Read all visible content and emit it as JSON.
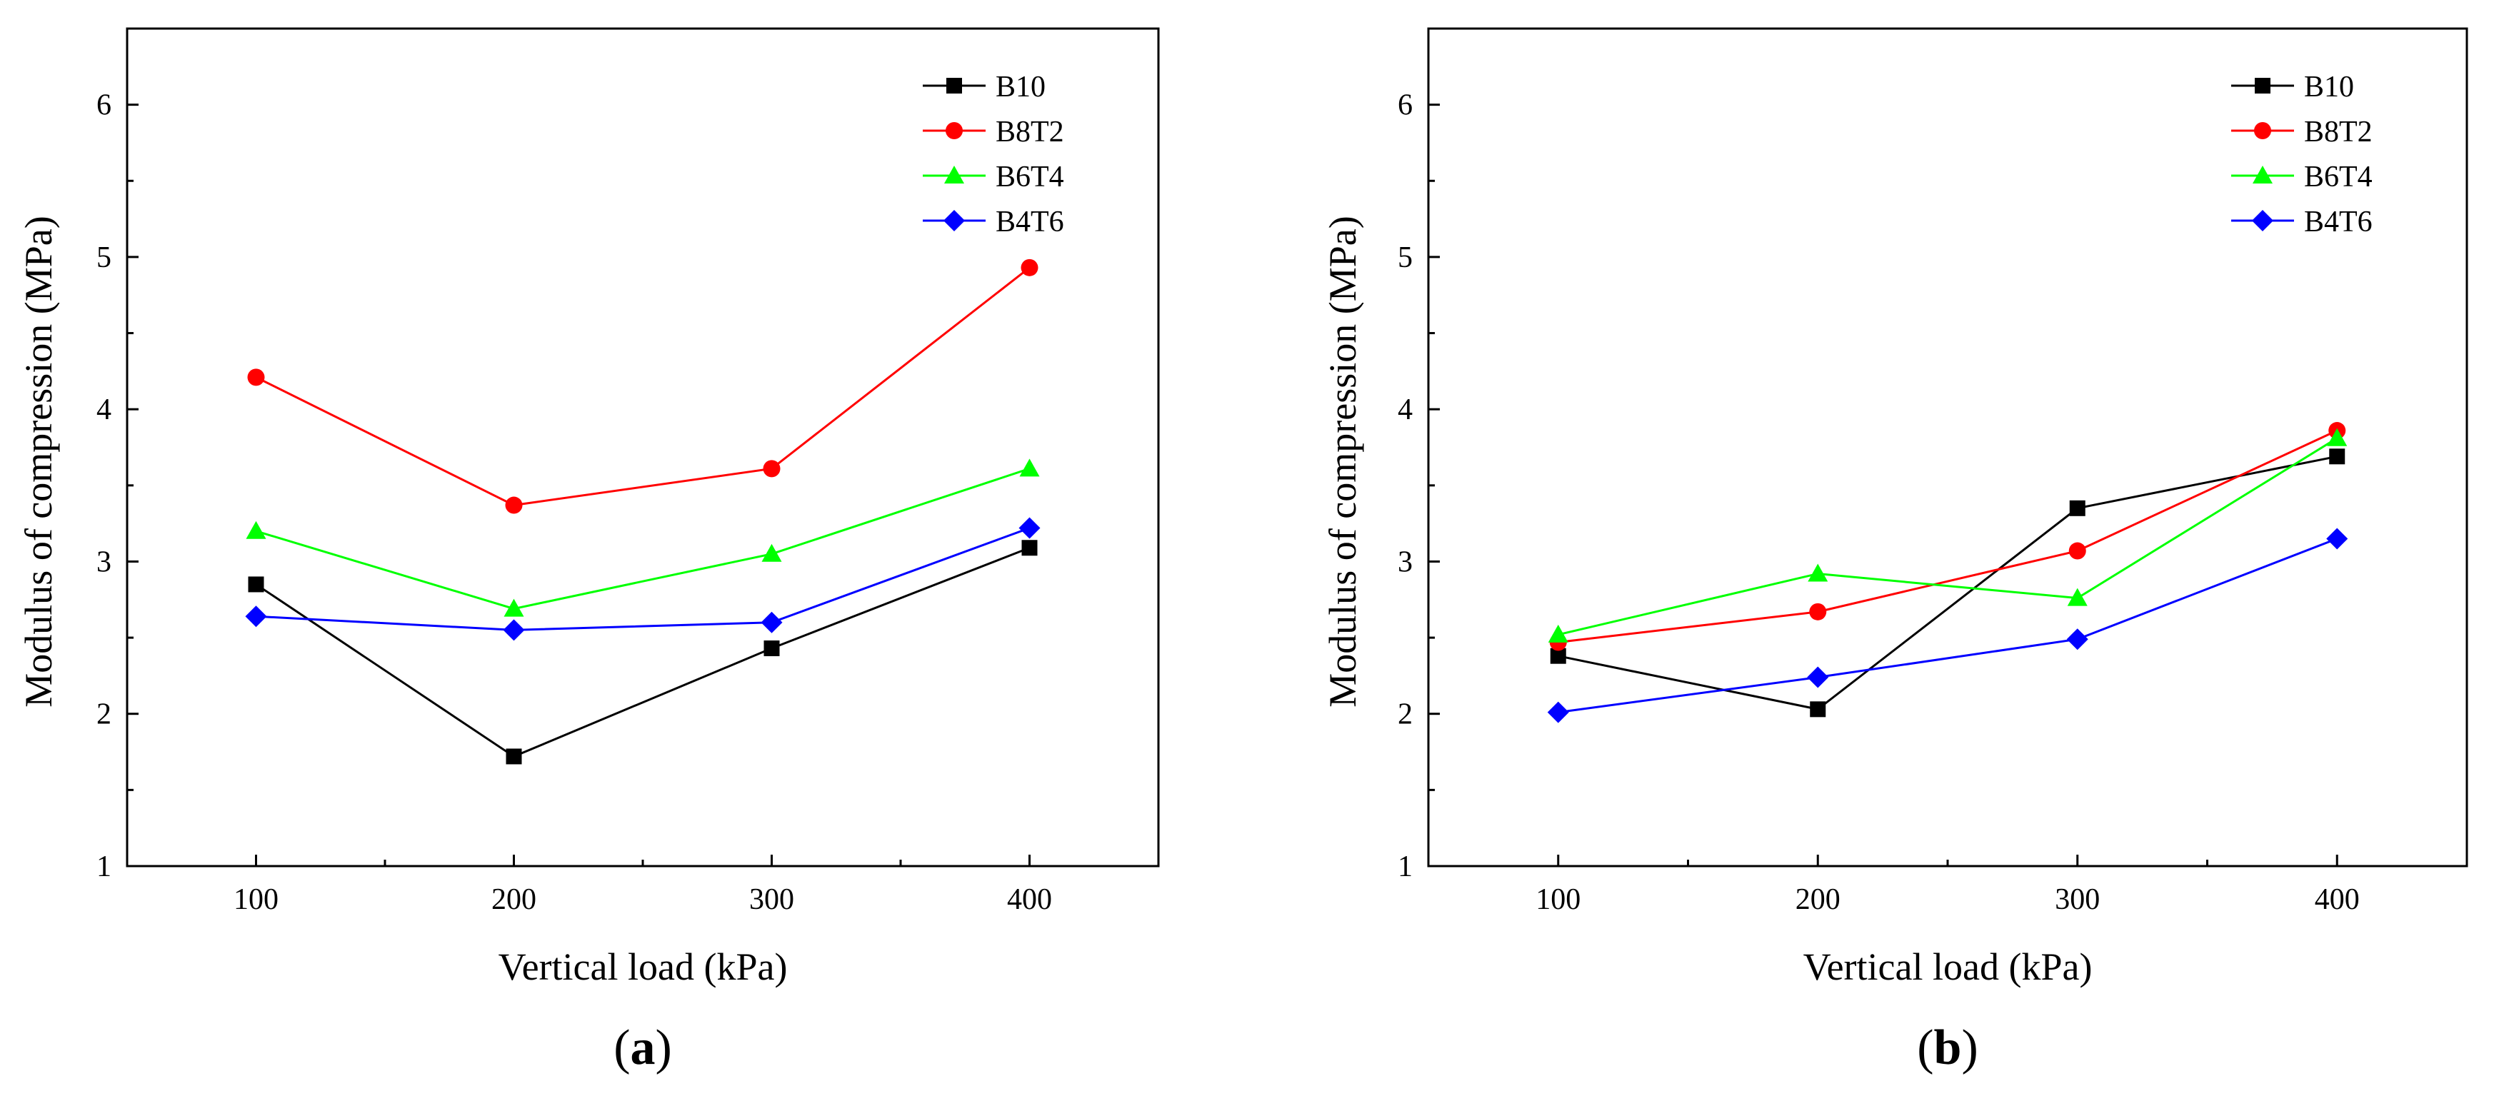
{
  "chart_data": [
    {
      "type": "line",
      "panel_label": "a",
      "xlabel": "Vertical load (kPa)",
      "ylabel": "Modulus of compression (MPa)",
      "x": [
        100,
        200,
        300,
        400
      ],
      "xticks": [
        "100",
        "200",
        "300",
        "400"
      ],
      "xlim": [
        50,
        450
      ],
      "yticks": [
        "1",
        "2",
        "3",
        "4",
        "5",
        "6"
      ],
      "ylim": [
        1,
        6.5
      ],
      "legend_position": "top-right",
      "series": [
        {
          "name": "B10",
          "color": "#000000",
          "marker": "square",
          "values": [
            2.85,
            1.72,
            2.43,
            3.09
          ]
        },
        {
          "name": "B8T2",
          "color": "#ff0000",
          "marker": "circle",
          "values": [
            4.21,
            3.37,
            3.61,
            4.93
          ]
        },
        {
          "name": "B6T4",
          "color": "#00ff00",
          "marker": "triangle",
          "values": [
            3.2,
            2.69,
            3.05,
            3.61
          ]
        },
        {
          "name": "B4T6",
          "color": "#0000ff",
          "marker": "diamond",
          "values": [
            2.64,
            2.55,
            2.6,
            3.22
          ]
        }
      ]
    },
    {
      "type": "line",
      "panel_label": "b",
      "xlabel": "Vertical load (kPa)",
      "ylabel": "Modulus of compression (MPa)",
      "x": [
        100,
        200,
        300,
        400
      ],
      "xticks": [
        "100",
        "200",
        "300",
        "400"
      ],
      "xlim": [
        50,
        450
      ],
      "yticks": [
        "1",
        "2",
        "3",
        "4",
        "5",
        "6"
      ],
      "ylim": [
        1,
        6.5
      ],
      "legend_position": "top-right",
      "series": [
        {
          "name": "B10",
          "color": "#000000",
          "marker": "square",
          "values": [
            2.38,
            2.03,
            3.35,
            3.69
          ]
        },
        {
          "name": "B8T2",
          "color": "#ff0000",
          "marker": "circle",
          "values": [
            2.47,
            2.67,
            3.07,
            3.86
          ]
        },
        {
          "name": "B6T4",
          "color": "#00ff00",
          "marker": "triangle",
          "values": [
            2.52,
            2.92,
            2.76,
            3.81
          ]
        },
        {
          "name": "B4T6",
          "color": "#0000ff",
          "marker": "diamond",
          "values": [
            2.01,
            2.24,
            2.49,
            3.15
          ]
        }
      ]
    }
  ]
}
